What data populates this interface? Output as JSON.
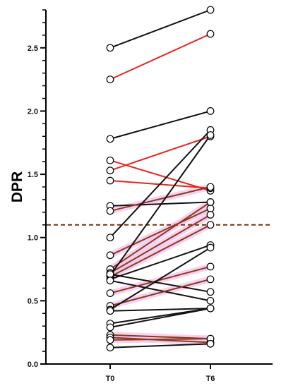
{
  "chart_data": {
    "type": "line",
    "title": "",
    "xlabel": "",
    "ylabel": "DPR",
    "categories": [
      "T0",
      "T6"
    ],
    "ylim": [
      0,
      2.8
    ],
    "y_ticks": [
      0.0,
      0.5,
      1.0,
      1.5,
      2.0,
      2.5
    ],
    "y_tick_labels": [
      "0.0",
      "0.5",
      "1.0",
      "1.5",
      "2.0",
      "2.5"
    ],
    "y_minor_step": 0.1,
    "grid": false,
    "legend": "none",
    "reference_line": {
      "y": 1.1,
      "style": "dashed",
      "color": "#7b2d0e"
    },
    "colors": {
      "black": "#111111",
      "red": "#e8251f",
      "brown": "#8b3a1b",
      "highlight": "#f3c8ee"
    },
    "series": [
      {
        "values": [
          2.5,
          2.8
        ],
        "color": "black"
      },
      {
        "values": [
          2.25,
          2.61
        ],
        "color": "red"
      },
      {
        "values": [
          1.78,
          2.0
        ],
        "color": "black"
      },
      {
        "values": [
          1.61,
          1.37
        ],
        "color": "red"
      },
      {
        "values": [
          1.53,
          1.8
        ],
        "color": "red"
      },
      {
        "values": [
          1.45,
          1.39
        ],
        "color": "red"
      },
      {
        "values": [
          1.25,
          1.28
        ],
        "color": "black"
      },
      {
        "values": [
          1.21,
          1.4
        ],
        "color": "brown"
      },
      {
        "values": [
          1.0,
          1.85
        ],
        "color": "black"
      },
      {
        "values": [
          0.86,
          1.23
        ],
        "color": "brown"
      },
      {
        "values": [
          0.75,
          1.28
        ],
        "color": "brown"
      },
      {
        "values": [
          0.72,
          1.18
        ],
        "color": "brown"
      },
      {
        "values": [
          0.7,
          1.81
        ],
        "color": "black"
      },
      {
        "values": [
          0.69,
          1.1
        ],
        "color": "brown"
      },
      {
        "values": [
          0.67,
          0.94
        ],
        "color": "black"
      },
      {
        "values": [
          0.71,
          0.57
        ],
        "color": "black"
      },
      {
        "values": [
          0.66,
          0.5
        ],
        "color": "black"
      },
      {
        "values": [
          0.56,
          0.77
        ],
        "color": "brown"
      },
      {
        "values": [
          0.46,
          0.67
        ],
        "color": "brown"
      },
      {
        "values": [
          0.43,
          0.92
        ],
        "color": "black"
      },
      {
        "values": [
          0.42,
          0.44
        ],
        "color": "black"
      },
      {
        "values": [
          0.32,
          0.44
        ],
        "color": "black"
      },
      {
        "values": [
          0.29,
          0.44
        ],
        "color": "black"
      },
      {
        "values": [
          0.23,
          0.2
        ],
        "color": "brown"
      },
      {
        "values": [
          0.21,
          0.17
        ],
        "color": "brown"
      },
      {
        "values": [
          0.19,
          0.2
        ],
        "color": "brown"
      },
      {
        "values": [
          0.13,
          0.16
        ],
        "color": "black"
      }
    ]
  }
}
